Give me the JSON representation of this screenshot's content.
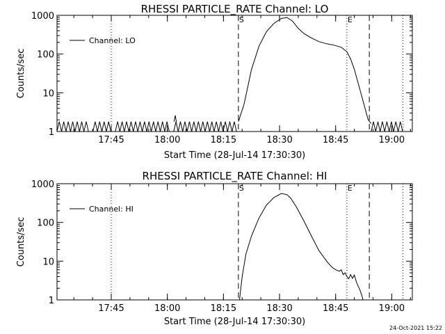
{
  "footer": {
    "timestamp": "24-Oct-2021 15:22"
  },
  "chart_data": [
    {
      "type": "line",
      "title": "RHESSI PARTICLE_RATE Channel: LO",
      "xlabel": "Start Time (28-Jul-14 17:30:30)",
      "ylabel": "Counts/sec",
      "x_unit": "minutes after 17:30:30",
      "xlim": [
        0,
        95
      ],
      "ylim": [
        1,
        1000
      ],
      "yscale": "log",
      "x_ticks": [
        {
          "value": 14.5,
          "label": "17:45"
        },
        {
          "value": 29.5,
          "label": "18:00"
        },
        {
          "value": 44.5,
          "label": "18:15"
        },
        {
          "value": 59.5,
          "label": "18:30"
        },
        {
          "value": 74.5,
          "label": "18:45"
        },
        {
          "value": 89.5,
          "label": "19:00"
        }
      ],
      "y_ticks": [
        {
          "value": 1,
          "label": "1"
        },
        {
          "value": 10,
          "label": "10"
        },
        {
          "value": 100,
          "label": "100"
        },
        {
          "value": 1000,
          "label": "1000"
        }
      ],
      "legend": {
        "position": "top-left",
        "entries": [
          "Channel: LO"
        ]
      },
      "vlines": [
        {
          "x": 14.5,
          "style": "dotted"
        },
        {
          "x": 77.5,
          "style": "dotted"
        },
        {
          "x": 92.5,
          "style": "dotted"
        },
        {
          "x": 48.5,
          "style": "dashed",
          "label": "S"
        },
        {
          "x": 83.5,
          "style": "dashed"
        },
        {
          "x": 77.5,
          "style": "none",
          "label": "E"
        }
      ],
      "series": [
        {
          "noise": {
            "x_start": 0,
            "x_end": 48.5,
            "low": 1,
            "high": 1.8,
            "period": 1.2,
            "gaps": [
              [
                8.5,
                9.6
              ],
              [
                14.5,
                15.6
              ],
              [
                30.5,
                31.5
              ]
            ]
          },
          "spike": {
            "x": 31.6,
            "y": 2.6
          },
          "x": [
            48.5,
            50,
            52,
            54,
            56,
            58,
            60,
            61.5,
            63,
            64.5,
            66,
            68,
            70,
            72,
            74,
            76,
            77.5,
            78.5,
            79.5,
            80.5,
            81.5,
            82.5,
            83.2,
            84
          ],
          "y": [
            1.8,
            5,
            40,
            160,
            380,
            620,
            830,
            880,
            700,
            460,
            340,
            260,
            210,
            185,
            170,
            150,
            115,
            75,
            40,
            18,
            8,
            3.5,
            2,
            1.6
          ],
          "noise_after": {
            "x_start": 84,
            "x_end": 92.5,
            "low": 1,
            "high": 1.8,
            "period": 1.2
          }
        }
      ]
    },
    {
      "type": "line",
      "title": "RHESSI PARTICLE_RATE Channel: HI",
      "xlabel": "Start Time (28-Jul-14 17:30:30)",
      "ylabel": "Counts/sec",
      "x_unit": "minutes after 17:30:30",
      "xlim": [
        0,
        95
      ],
      "ylim": [
        1,
        1000
      ],
      "yscale": "log",
      "x_ticks": [
        {
          "value": 14.5,
          "label": "17:45"
        },
        {
          "value": 29.5,
          "label": "18:00"
        },
        {
          "value": 44.5,
          "label": "18:15"
        },
        {
          "value": 59.5,
          "label": "18:30"
        },
        {
          "value": 74.5,
          "label": "18:45"
        },
        {
          "value": 89.5,
          "label": "19:00"
        }
      ],
      "y_ticks": [
        {
          "value": 1,
          "label": "1"
        },
        {
          "value": 10,
          "label": "10"
        },
        {
          "value": 100,
          "label": "100"
        },
        {
          "value": 1000,
          "label": "1000"
        }
      ],
      "legend": {
        "position": "top-left",
        "entries": [
          "Channel: HI"
        ]
      },
      "vlines": [
        {
          "x": 14.5,
          "style": "dotted"
        },
        {
          "x": 77.5,
          "style": "dotted"
        },
        {
          "x": 92.5,
          "style": "dotted"
        },
        {
          "x": 48.5,
          "style": "dashed",
          "label": "S"
        },
        {
          "x": 83.5,
          "style": "dashed"
        },
        {
          "x": 77.5,
          "style": "none",
          "label": "E"
        }
      ],
      "series": [
        {
          "x": [
            48.8,
            49.5,
            50.5,
            52,
            54,
            56,
            58,
            60,
            61.5,
            62.5,
            64,
            66,
            68,
            70,
            71.5,
            72.5,
            73.5,
            74.5,
            75.5,
            76,
            76.5,
            77,
            77.5,
            78,
            78.5,
            79,
            79.5,
            80,
            80.5,
            81,
            81.5,
            81.8
          ],
          "y": [
            1,
            4,
            15,
            45,
            130,
            280,
            440,
            560,
            520,
            420,
            250,
            110,
            45,
            19,
            12,
            9,
            7,
            6,
            5.5,
            6,
            4.5,
            5,
            4,
            3.5,
            4.5,
            3.6,
            4.4,
            3,
            2.3,
            1.8,
            1.3,
            1
          ]
        }
      ]
    }
  ]
}
